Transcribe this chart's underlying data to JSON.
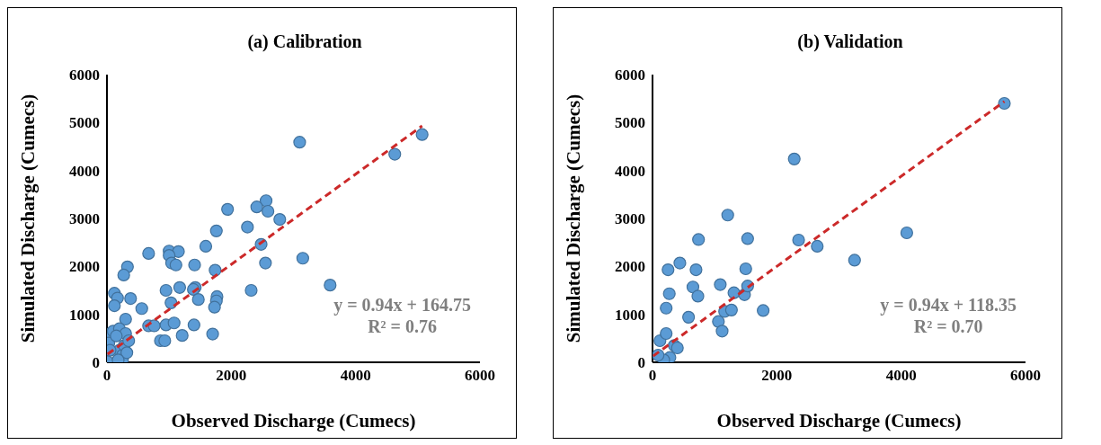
{
  "chart_data": [
    {
      "type": "scatter",
      "title": "(a) Calibration",
      "xlabel": "Observed Discharge (Cumecs)",
      "ylabel": "Simulated Discharge (Cumecs)",
      "xlim": [
        0,
        6000
      ],
      "ylim": [
        0,
        6000
      ],
      "xticks": [
        0,
        2000,
        4000,
        6000
      ],
      "yticks": [
        0,
        1000,
        2000,
        3000,
        4000,
        5000,
        6000
      ],
      "annotations": [
        "y = 0.94x + 164.75",
        "R² = 0.76"
      ],
      "series": [
        {
          "color": "#5b9bd5",
          "marker": "circle",
          "x": [
            3100,
            5070,
            4630,
            1940,
            2560,
            2410,
            2590,
            2780,
            2260,
            1760,
            1590,
            2480,
            2550,
            3150,
            3590,
            670,
            1000,
            1150,
            1000,
            1040,
            1110,
            1410,
            1740,
            330,
            270,
            950,
            1170,
            1420,
            1390,
            1470,
            1770,
            1760,
            1730,
            2320,
            1030,
            120,
            170,
            380,
            120,
            560,
            300,
            670,
            760,
            950,
            1080,
            1400,
            1210,
            860,
            930,
            1700,
            200,
            250,
            60,
            30,
            100,
            200,
            280,
            300,
            150,
            50,
            10,
            250,
            320,
            180,
            350
          ],
          "values": [
            4590,
            4750,
            4340,
            3190,
            3370,
            3240,
            3150,
            2980,
            2820,
            2740,
            2420,
            2460,
            2070,
            2170,
            1610,
            2270,
            2320,
            2310,
            2230,
            2070,
            2030,
            2030,
            1920,
            1990,
            1820,
            1500,
            1560,
            1560,
            1520,
            1310,
            1370,
            1280,
            1150,
            1500,
            1240,
            1440,
            1340,
            1330,
            1180,
            1120,
            900,
            760,
            760,
            780,
            820,
            780,
            560,
            450,
            450,
            590,
            250,
            150,
            600,
            400,
            650,
            700,
            350,
            600,
            550,
            250,
            10,
            50,
            200,
            50,
            450
          ]
        },
        {
          "type": "line",
          "color": "#cc2929",
          "marker": "none",
          "line_style": "dashed",
          "x": [
            10,
            5070
          ],
          "values": [
            170,
            4930
          ]
        }
      ]
    },
    {
      "type": "scatter",
      "title": "(b) Validation",
      "xlabel": "Observed Discharge (Cumecs)",
      "ylabel": "Simulated Discharge (Cumecs)",
      "xlim": [
        0,
        6000
      ],
      "ylim": [
        0,
        6000
      ],
      "xticks": [
        0,
        2000,
        4000,
        6000
      ],
      "yticks": [
        0,
        1000,
        2000,
        3000,
        4000,
        5000,
        6000
      ],
      "annotations": [
        "y = 0.94x + 118.35",
        "R² = 0.70"
      ],
      "series": [
        {
          "color": "#5b9bd5",
          "marker": "circle",
          "x": [
            5660,
            2280,
            1210,
            740,
            1530,
            2350,
            2650,
            4090,
            3250,
            250,
            440,
            700,
            1500,
            270,
            650,
            730,
            1090,
            1310,
            1480,
            1530,
            220,
            580,
            1160,
            1270,
            1780,
            1060,
            1120,
            120,
            350,
            280,
            180,
            220,
            400,
            90
          ],
          "values": [
            5400,
            4240,
            3070,
            2560,
            2580,
            2550,
            2420,
            2700,
            2130,
            1930,
            2070,
            1930,
            1950,
            1430,
            1570,
            1380,
            1620,
            1450,
            1410,
            1590,
            1130,
            940,
            1060,
            1090,
            1080,
            850,
            650,
            450,
            350,
            100,
            50,
            600,
            300,
            150
          ]
        },
        {
          "type": "line",
          "color": "#cc2929",
          "marker": "none",
          "line_style": "dashed",
          "x": [
            10,
            5660
          ],
          "values": [
            130,
            5440
          ]
        }
      ]
    }
  ]
}
